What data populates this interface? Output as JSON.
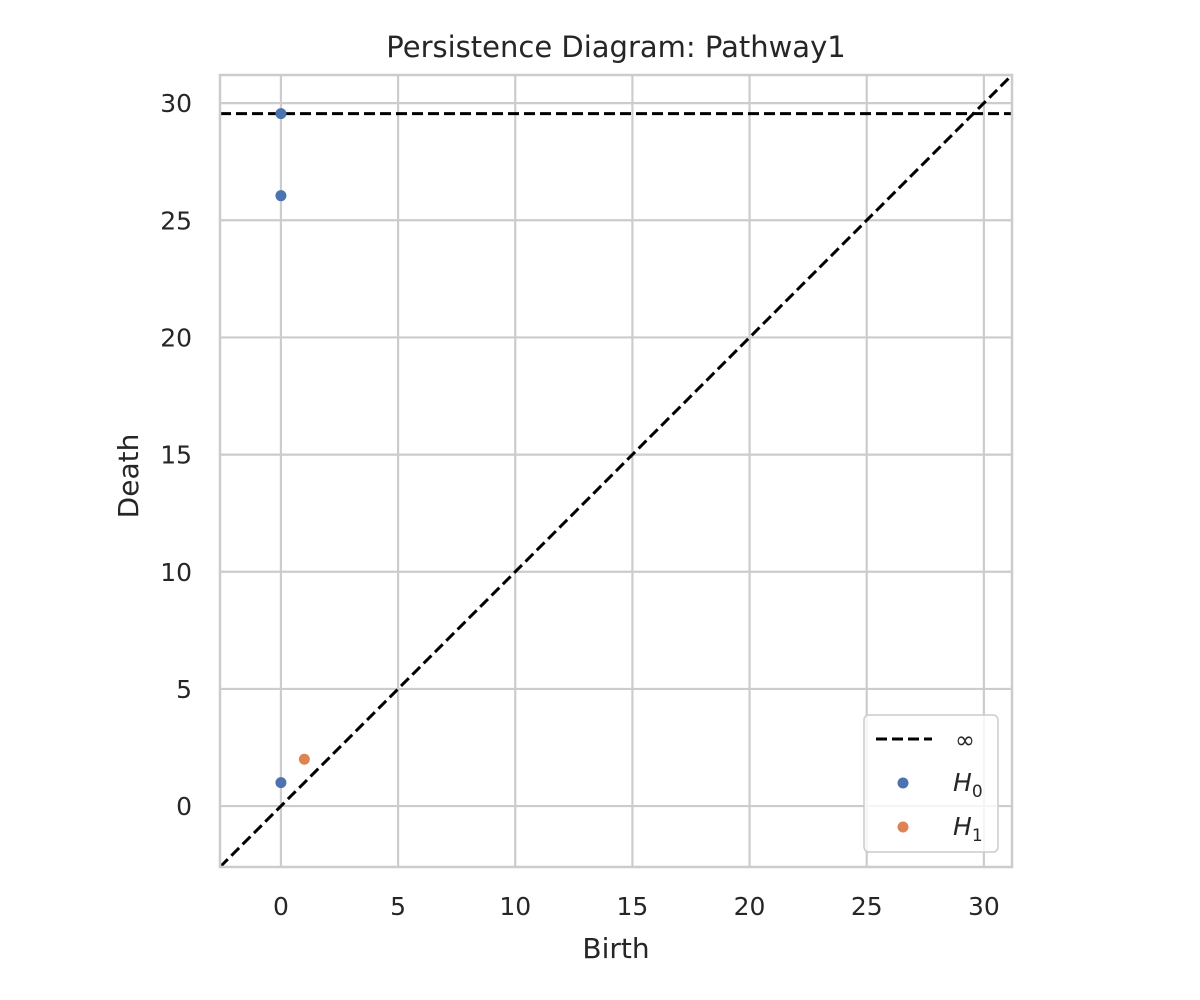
{
  "chart_data": {
    "type": "scatter",
    "title": "Persistence Diagram: Pathway1",
    "xlabel": "Birth",
    "ylabel": "Death",
    "xlim": [
      -2.6,
      31.2
    ],
    "ylim": [
      -2.6,
      31.2
    ],
    "xticks": [
      0,
      5,
      10,
      15,
      20,
      25,
      30
    ],
    "yticks": [
      0,
      5,
      10,
      15,
      20,
      25,
      30
    ],
    "grid": true,
    "legend_position": "bottom-right",
    "infinity_value": 29.55,
    "diagonal": true,
    "series": [
      {
        "name": "H0",
        "legend_main": "H",
        "legend_sub": "0",
        "color": "#4c72b0",
        "points": [
          {
            "x": 0,
            "y": 29.55
          },
          {
            "x": 0,
            "y": 26.05
          },
          {
            "x": 0,
            "y": 1.0
          }
        ]
      },
      {
        "name": "H1",
        "legend_main": "H",
        "legend_sub": "1",
        "color": "#dd8452",
        "points": [
          {
            "x": 1.0,
            "y": 2.0
          }
        ]
      }
    ],
    "legend": {
      "infinity_label": "∞"
    }
  }
}
